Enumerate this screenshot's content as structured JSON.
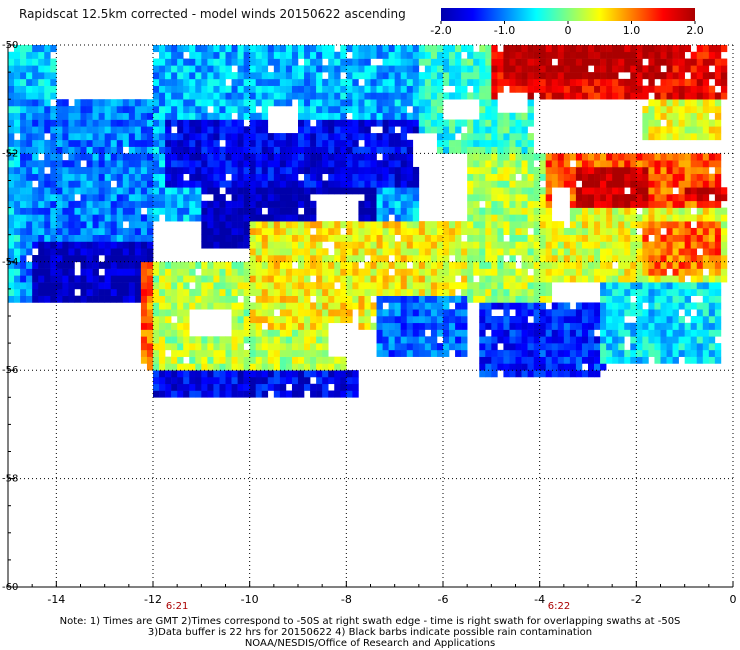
{
  "title": "Rapidscat 12.5km corrected - model winds 20150622 ascending",
  "colorbar": {
    "labels": [
      "-2.0",
      "-1.0",
      "0",
      "1.0",
      "2.0"
    ],
    "range": [
      -2,
      2
    ],
    "colors": [
      "#0000aa",
      "#0000ff",
      "#0080ff",
      "#00ffff",
      "#80ff80",
      "#ffff00",
      "#ff8000",
      "#ff0000",
      "#aa0000"
    ]
  },
  "notes": [
    "Note: 1) Times are GMT 2)Times correspond to -50S at right swath edge - time is right swath for overlapping swaths at -50S",
    "3)Data buffer is 22 hrs for 20150622 4) Black barbs indicate possible rain contamination",
    "NOAA/NESDIS/Office of Research and Applications"
  ],
  "time_labels": [
    {
      "text": "6:21",
      "lon": -11.5
    },
    {
      "text": "6:22",
      "lon": -3.6
    }
  ],
  "chart_data": {
    "type": "heatmap",
    "title": "Rapidscat 12.5km corrected - model winds 20150622 ascending",
    "xlabel": "",
    "ylabel": "",
    "xlim": [
      -15,
      0
    ],
    "ylim": [
      -60,
      -50
    ],
    "x_ticks": [
      "-14",
      "-12",
      "-10",
      "-8",
      "-6",
      "-4",
      "-2",
      "0"
    ],
    "y_ticks": [
      "-50",
      "-52",
      "-54",
      "-56",
      "-58",
      "-60"
    ],
    "value_range": [
      -2.0,
      2.0
    ],
    "grid": true,
    "colorbar_placement": "top-right",
    "regions": [
      {
        "lon": [
          -15,
          -14.7
        ],
        "lat": [
          -52,
          -51
        ],
        "value": 1.7
      },
      {
        "lon": [
          -15,
          -14.0
        ],
        "lat": [
          -54.7,
          -50
        ],
        "value": -0.7
      },
      {
        "lon": [
          -14.7,
          -12.0
        ],
        "lat": [
          -54.7,
          -51
        ],
        "value": -1.0
      },
      {
        "lon": [
          -14.5,
          -12.0
        ],
        "lat": [
          -54.7,
          -53.6
        ],
        "value": -1.9
      },
      {
        "lon": [
          -12,
          -6.5
        ],
        "lat": [
          -53.2,
          -50
        ],
        "value": -0.8
      },
      {
        "lon": [
          -11.8,
          -6.5
        ],
        "lat": [
          -52.6,
          -51.4
        ],
        "value": -1.6
      },
      {
        "lon": [
          -11.0,
          -7.4
        ],
        "lat": [
          -53.8,
          -52.6
        ],
        "value": -2.0
      },
      {
        "lon": [
          -6.5,
          -5.5
        ],
        "lat": [
          -52.0,
          -50
        ],
        "value": -0.4
      },
      {
        "lon": [
          -12.3,
          -10.6
        ],
        "lat": [
          -56.0,
          -54.0
        ],
        "value": 1.1
      },
      {
        "lon": [
          -12.0,
          -8.0
        ],
        "lat": [
          -56.1,
          -54.0
        ],
        "value": 0.2
      },
      {
        "lon": [
          -12.0,
          -7.8
        ],
        "lat": [
          -56.5,
          -56.0
        ],
        "value": -1.6
      },
      {
        "lon": [
          -10.0,
          -5.5
        ],
        "lat": [
          -55.2,
          -53.2
        ],
        "value": 0.5
      },
      {
        "lon": [
          -7.4,
          -5.5
        ],
        "lat": [
          -55.8,
          -54.6
        ],
        "value": -1.1
      },
      {
        "lon": [
          -5.5,
          -4.1
        ],
        "lat": [
          -52.2,
          -50
        ],
        "value": -0.3
      },
      {
        "lon": [
          -5.5,
          -3.8
        ],
        "lat": [
          -54.8,
          -52.0
        ],
        "value": 0.2
      },
      {
        "lon": [
          -5.3,
          -2.6
        ],
        "lat": [
          -56.1,
          -54.8
        ],
        "value": -1.4
      },
      {
        "lon": [
          -5.0,
          -0.1
        ],
        "lat": [
          -51.0,
          -50
        ],
        "value": 1.6
      },
      {
        "lon": [
          -4.8,
          -1.2
        ],
        "lat": [
          -50.6,
          -50
        ],
        "value": 2.0
      },
      {
        "lon": [
          -3.9,
          -0.2
        ],
        "lat": [
          -53.1,
          -52.0
        ],
        "value": 1.2
      },
      {
        "lon": [
          -3.2,
          -1.8
        ],
        "lat": [
          -53.1,
          -52.3
        ],
        "value": 1.9
      },
      {
        "lon": [
          -1.9,
          -0.2
        ],
        "lat": [
          -51.8,
          -51.0
        ],
        "value": 0.4
      },
      {
        "lon": [
          -1.0,
          -0.1
        ],
        "lat": [
          -52.9,
          -52.6
        ],
        "value": 1.8
      },
      {
        "lon": [
          -4.0,
          -0.1
        ],
        "lat": [
          -54.4,
          -53.0
        ],
        "value": 0.4
      },
      {
        "lon": [
          -1.9,
          -0.2
        ],
        "lat": [
          -54.2,
          -53.2
        ],
        "value": 1.1
      },
      {
        "lon": [
          -2.8,
          -0.3
        ],
        "lat": [
          -55.9,
          -54.4
        ],
        "value": -0.6
      }
    ],
    "gaps": [
      {
        "lon": [
          -6.0,
          -5.3
        ],
        "lat": [
          -51.4,
          -51.0
        ]
      },
      {
        "lon": [
          -4.9,
          -4.2
        ],
        "lat": [
          -51.3,
          -50.9
        ]
      },
      {
        "lon": [
          -9.6,
          -9.0
        ],
        "lat": [
          -51.6,
          -51.1
        ]
      },
      {
        "lon": [
          -6.6,
          -6.1
        ],
        "lat": [
          -52.2,
          -51.6
        ]
      },
      {
        "lon": [
          -8.6,
          -7.8
        ],
        "lat": [
          -53.2,
          -52.8
        ]
      },
      {
        "lon": [
          -11.2,
          -10.4
        ],
        "lat": [
          -55.4,
          -54.9
        ]
      },
      {
        "lon": [
          -8.4,
          -7.8
        ],
        "lat": [
          -55.8,
          -55.1
        ]
      },
      {
        "lon": [
          -3.7,
          -3.4
        ],
        "lat": [
          -53.2,
          -52.6
        ]
      }
    ]
  }
}
